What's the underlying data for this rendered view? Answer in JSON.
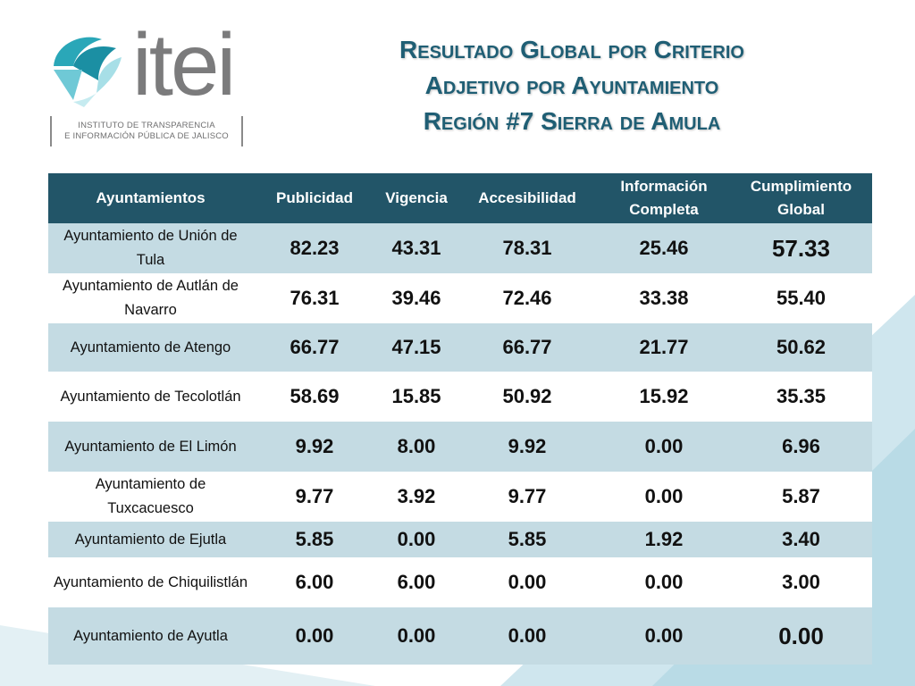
{
  "logo": {
    "wordmark": "itei",
    "subtitle_line1": "INSTITUTO DE TRANSPARENCIA",
    "subtitle_line2": "E INFORMACIÓN PÚBLICA DE JALISCO"
  },
  "title": {
    "line1": "Resultado Global por Criterio",
    "line2": "Adjetivo por Ayuntamiento",
    "line3": "Región #7 Sierra de Amula"
  },
  "colors": {
    "header_bg": "#225568",
    "row_shade": "#c4dbe3",
    "title_color": "#1f5e74"
  },
  "table": {
    "headers": [
      "Ayuntamientos",
      "Publicidad",
      "Vigencia",
      "Accesibilidad",
      "Información Completa",
      "Cumplimiento Global"
    ],
    "rows": [
      {
        "name": "Ayuntamiento de Unión de Tula",
        "values": [
          "82.23",
          "43.31",
          "78.31",
          "25.46",
          "57.33"
        ]
      },
      {
        "name": "Ayuntamiento de Autlán de Navarro",
        "values": [
          "76.31",
          "39.46",
          "72.46",
          "33.38",
          "55.40"
        ]
      },
      {
        "name": "Ayuntamiento de Atengo",
        "values": [
          "66.77",
          "47.15",
          "66.77",
          "21.77",
          "50.62"
        ]
      },
      {
        "name": "Ayuntamiento de Tecolotlán",
        "values": [
          "58.69",
          "15.85",
          "50.92",
          "15.92",
          "35.35"
        ]
      },
      {
        "name": "Ayuntamiento de El Limón",
        "values": [
          "9.92",
          "8.00",
          "9.92",
          "0.00",
          "6.96"
        ]
      },
      {
        "name": "Ayuntamiento de Tuxcacuesco",
        "values": [
          "9.77",
          "3.92",
          "9.77",
          "0.00",
          "5.87"
        ]
      },
      {
        "name": "Ayuntamiento de Ejutla",
        "values": [
          "5.85",
          "0.00",
          "5.85",
          "1.92",
          "3.40"
        ]
      },
      {
        "name": "Ayuntamiento de Chiquilistlán",
        "values": [
          "6.00",
          "6.00",
          "0.00",
          "0.00",
          "3.00"
        ]
      },
      {
        "name": "Ayuntamiento de Ayutla",
        "values": [
          "0.00",
          "0.00",
          "0.00",
          "0.00",
          "0.00"
        ]
      }
    ]
  }
}
